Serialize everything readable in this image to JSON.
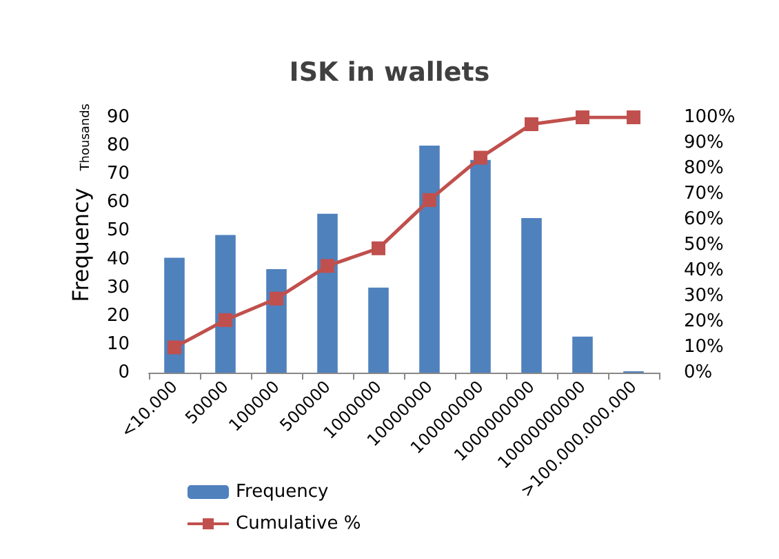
{
  "chart_data": {
    "type": "bar",
    "title": "ISK in wallets",
    "ylabel": "Frequency",
    "annotations": [
      "Thousands"
    ],
    "categories": [
      "<10.000",
      "50000",
      "100000",
      "500000",
      "1000000",
      "10000000",
      "100000000",
      "1000000000",
      "10000000000",
      ">100.000.000.000"
    ],
    "series": [
      {
        "name": "Frequency",
        "color": "#4f81bd",
        "values": [
          40.5,
          48.5,
          36.5,
          56,
          30,
          80,
          75,
          54.5,
          12.7,
          0.5
        ]
      },
      {
        "name": "Cumulative %",
        "type": "line",
        "axis": "y2",
        "color": "#c0504d",
        "marker": "square",
        "values": [
          9.9,
          20.6,
          29,
          41.8,
          48.7,
          67.6,
          84.2,
          97.3,
          100,
          100
        ]
      }
    ],
    "ylim": [
      0,
      90
    ],
    "yticks": [
      0,
      10,
      20,
      30,
      40,
      50,
      60,
      70,
      80,
      90
    ],
    "y2lim": [
      0,
      100
    ],
    "y2ticks": [
      {
        "value": 0,
        "label": "0%"
      },
      {
        "value": 10,
        "label": "10%"
      },
      {
        "value": 20,
        "label": "20%"
      },
      {
        "value": 30,
        "label": "30%"
      },
      {
        "value": 40,
        "label": "40%"
      },
      {
        "value": 50,
        "label": "50%"
      },
      {
        "value": 60,
        "label": "60%"
      },
      {
        "value": 70,
        "label": "70%"
      },
      {
        "value": 80,
        "label": "80%"
      },
      {
        "value": 90,
        "label": "90%"
      },
      {
        "value": 100,
        "label": "100%"
      }
    ],
    "grid": false,
    "legend": "bottom left"
  }
}
